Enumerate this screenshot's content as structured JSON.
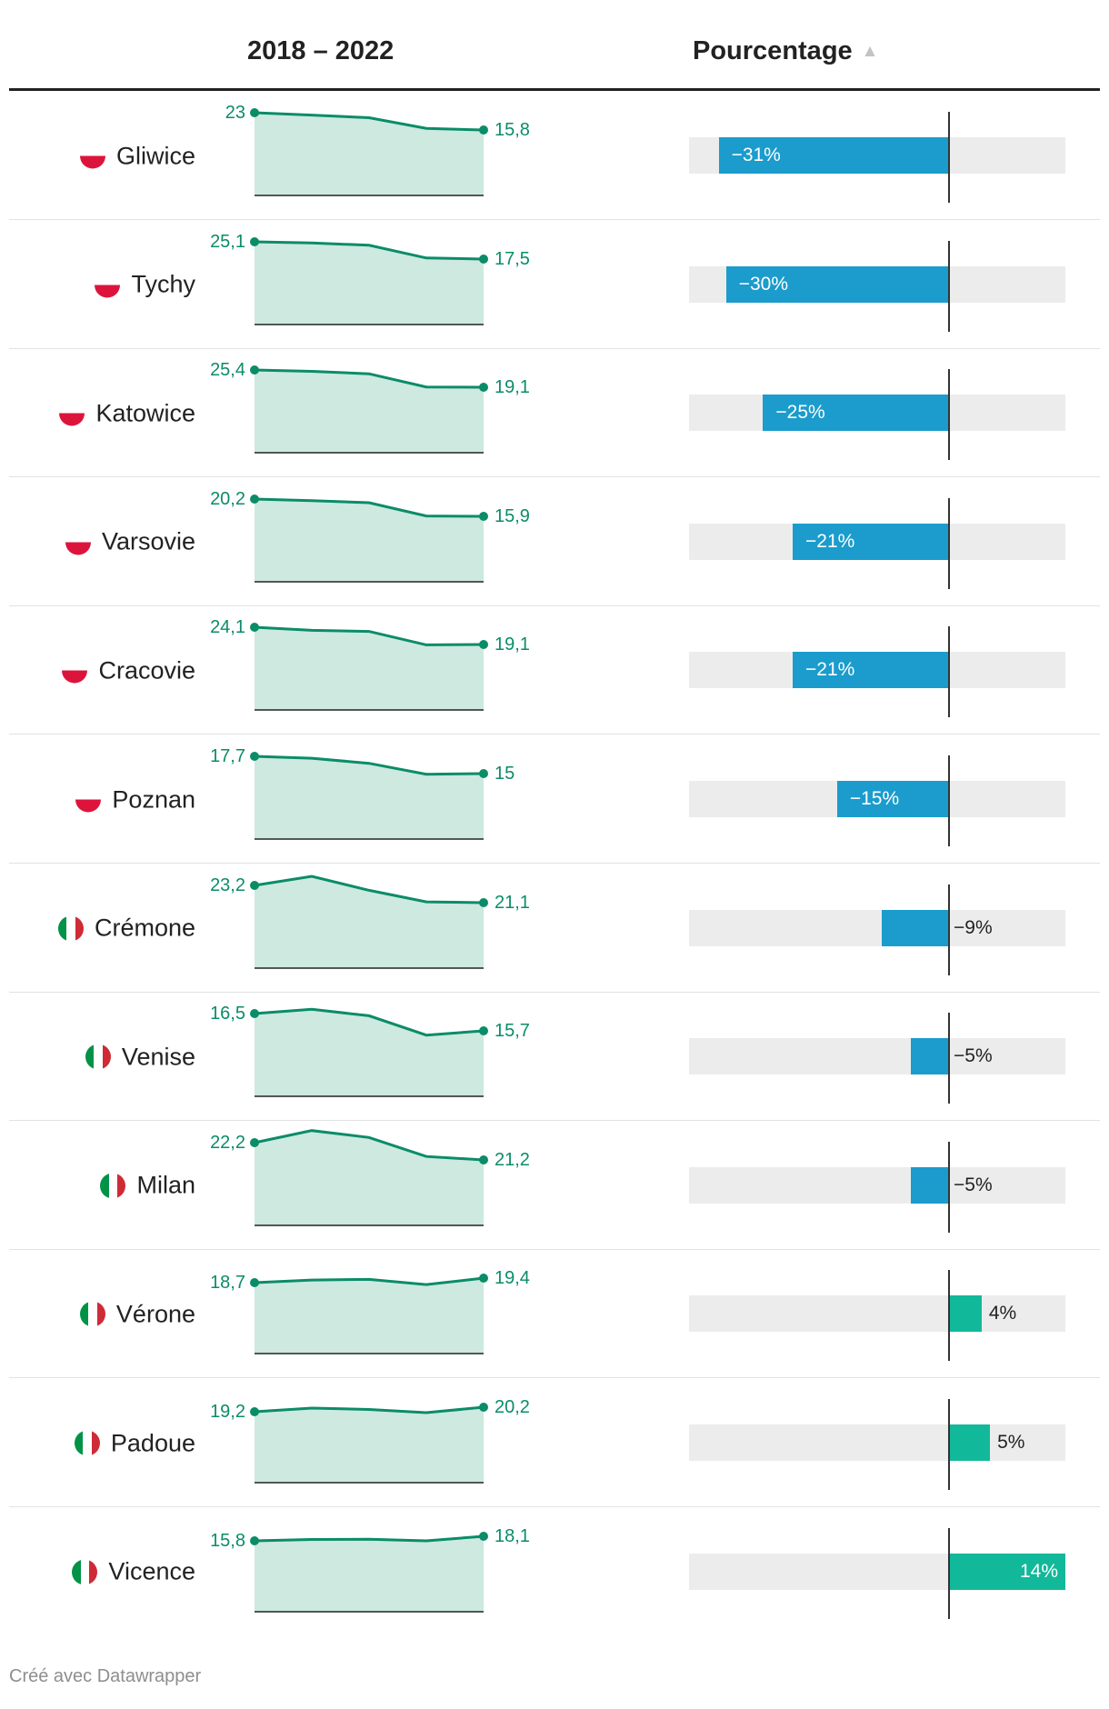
{
  "header": {
    "years_label": "2018 – 2022",
    "percent_label": "Pourcentage",
    "sort_icon": "triangle-up-icon"
  },
  "footer": {
    "credit": "Créé avec Datawrapper"
  },
  "colors": {
    "negative_bar": "#1b9ccc",
    "positive_bar": "#12b89a",
    "spark_line": "#0b8c68",
    "spark_fill": "#cde9e0",
    "track": "#ececec"
  },
  "chart_data": {
    "type": "table",
    "columns": [
      "",
      "2018 – 2022",
      "Pourcentage"
    ],
    "sparkline_points": 5,
    "percent_range": [
      -35,
      14
    ],
    "rows": [
      {
        "city": "Gliwice",
        "flag": "poland-flag-icon",
        "values": [
          23.0,
          22.0,
          20.9,
          16.5,
          15.8
        ],
        "first_label": "23",
        "last_label": "15,8",
        "percent": -31,
        "percent_label": "−31%"
      },
      {
        "city": "Tychy",
        "flag": "poland-flag-icon",
        "values": [
          25.1,
          24.6,
          23.6,
          18.0,
          17.5
        ],
        "first_label": "25,1",
        "last_label": "17,5",
        "percent": -30,
        "percent_label": "−30%"
      },
      {
        "city": "Katowice",
        "flag": "poland-flag-icon",
        "values": [
          25.4,
          24.9,
          24.0,
          19.2,
          19.1
        ],
        "first_label": "25,4",
        "last_label": "19,1",
        "percent": -25,
        "percent_label": "−25%"
      },
      {
        "city": "Varsovie",
        "flag": "poland-flag-icon",
        "values": [
          20.2,
          19.8,
          19.3,
          16.0,
          15.9
        ],
        "first_label": "20,2",
        "last_label": "15,9",
        "percent": -21,
        "percent_label": "−21%"
      },
      {
        "city": "Cracovie",
        "flag": "poland-flag-icon",
        "values": [
          24.1,
          23.2,
          22.9,
          19.0,
          19.1
        ],
        "first_label": "24,1",
        "last_label": "19,1",
        "percent": -21,
        "percent_label": "−21%"
      },
      {
        "city": "Poznan",
        "flag": "poland-flag-icon",
        "values": [
          17.7,
          17.4,
          16.6,
          14.9,
          15.0
        ],
        "first_label": "17,7",
        "last_label": "15",
        "percent": -15,
        "percent_label": "−15%"
      },
      {
        "city": "Crémone",
        "flag": "italy-flag-icon",
        "values": [
          23.2,
          24.3,
          22.6,
          21.2,
          21.1
        ],
        "first_label": "23,2",
        "last_label": "21,1",
        "percent": -9,
        "percent_label": "−9%"
      },
      {
        "city": "Venise",
        "flag": "italy-flag-icon",
        "values": [
          16.5,
          16.7,
          16.4,
          15.5,
          15.7
        ],
        "first_label": "16,5",
        "last_label": "15,7",
        "percent": -5,
        "percent_label": "−5%"
      },
      {
        "city": "Milan",
        "flag": "italy-flag-icon",
        "values": [
          22.2,
          22.9,
          22.5,
          21.4,
          21.2
        ],
        "first_label": "22,2",
        "last_label": "21,2",
        "percent": -5,
        "percent_label": "−5%"
      },
      {
        "city": "Vérone",
        "flag": "italy-flag-icon",
        "values": [
          18.7,
          19.1,
          19.2,
          18.4,
          19.4
        ],
        "first_label": "18,7",
        "last_label": "19,4",
        "percent": 4,
        "percent_label": "4%"
      },
      {
        "city": "Padoue",
        "flag": "italy-flag-icon",
        "values": [
          19.2,
          20.0,
          19.7,
          19.0,
          20.2
        ],
        "first_label": "19,2",
        "last_label": "20,2",
        "percent": 5,
        "percent_label": "5%"
      },
      {
        "city": "Vicence",
        "flag": "italy-flag-icon",
        "values": [
          15.8,
          16.5,
          16.6,
          15.8,
          18.1
        ],
        "first_label": "15,8",
        "last_label": "18,1",
        "percent": 14,
        "percent_label": "14%"
      }
    ]
  }
}
